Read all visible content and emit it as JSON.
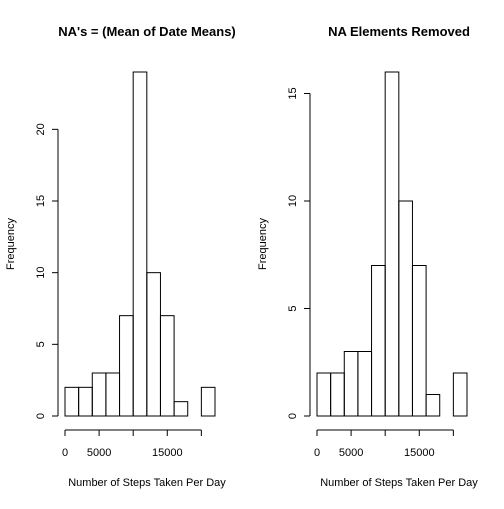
{
  "chart_data": [
    {
      "type": "histogram",
      "title": "NA's = (Mean of Date Means)",
      "xlabel": "Number of Steps Taken Per Day",
      "ylabel": "Frequency",
      "bins": [
        0,
        2000,
        4000,
        6000,
        8000,
        10000,
        12000,
        14000,
        16000,
        18000,
        20000,
        22000
      ],
      "values": [
        2,
        2,
        3,
        3,
        7,
        24,
        10,
        7,
        1,
        0,
        2
      ],
      "xlim": [
        0,
        22000
      ],
      "xticks": [
        0,
        5000,
        {
          "value": 10000,
          "label": null
        },
        15000,
        {
          "value": 20000,
          "label": null
        }
      ],
      "ylim": [
        0,
        24
      ],
      "yticks": [
        0,
        5,
        10,
        15,
        20
      ]
    },
    {
      "type": "histogram",
      "title": "NA Elements Removed",
      "xlabel": "Number of Steps Taken Per Day",
      "ylabel": "Frequency",
      "bins": [
        0,
        2000,
        4000,
        6000,
        8000,
        10000,
        12000,
        14000,
        16000,
        18000,
        20000,
        22000
      ],
      "values": [
        2,
        2,
        3,
        3,
        7,
        16,
        10,
        7,
        1,
        0,
        2
      ],
      "xlim": [
        0,
        22000
      ],
      "xticks": [
        0,
        5000,
        {
          "value": 10000,
          "label": null
        },
        15000,
        {
          "value": 20000,
          "label": null
        }
      ],
      "ylim": [
        0,
        16
      ],
      "yticks": [
        0,
        5,
        10,
        15
      ]
    }
  ]
}
